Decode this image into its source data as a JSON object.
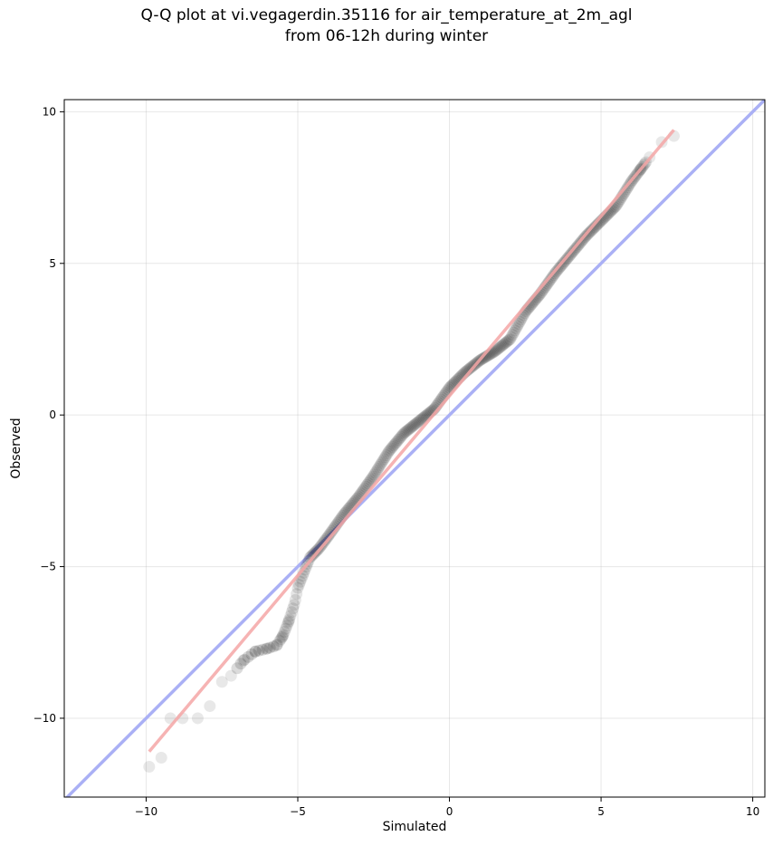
{
  "chart_data": {
    "type": "scatter",
    "title": "Q-Q plot at vi.vegagerdin.35116 for air_temperature_at_2m_agl",
    "subtitle": "from 06-12h during winter",
    "xlabel": "Simulated",
    "ylabel": "Observed",
    "xlim": [
      -12.7,
      10.4
    ],
    "ylim": [
      -12.6,
      10.4
    ],
    "xticks": [
      -10,
      -5,
      0,
      5,
      10
    ],
    "yticks": [
      -10,
      -5,
      0,
      5,
      10
    ],
    "tick_labels": {
      "x": [
        "−10",
        "−5",
        "0",
        "5",
        "10"
      ],
      "y": [
        "−10",
        "−5",
        "0",
        "5",
        "10"
      ]
    },
    "grid": true,
    "lines": {
      "identity": {
        "x": [
          -12.7,
          10.4
        ],
        "y": [
          -12.7,
          10.4
        ],
        "color": "#aab0f5"
      },
      "fit": {
        "x": [
          -9.9,
          7.4
        ],
        "y": [
          -11.1,
          9.4
        ],
        "color": "#f4a6a6"
      }
    },
    "point_color": "#000000",
    "quantile_curve": {
      "x": [
        -9.9,
        -9.5,
        -9.2,
        -8.8,
        -8.3,
        -7.9,
        -7.5,
        -7.2,
        -6.8,
        -6.4,
        -6.0,
        -5.7,
        -5.5,
        -5.3,
        -5.1,
        -5.0,
        -4.8,
        -4.6,
        -4.3,
        -4.0,
        -3.5,
        -3.0,
        -2.5,
        -2.0,
        -1.5,
        -1.0,
        -0.5,
        0.0,
        0.5,
        1.0,
        1.5,
        2.0,
        2.5,
        3.0,
        3.5,
        4.0,
        4.5,
        5.0,
        5.5,
        6.0,
        6.3,
        6.6,
        7.0,
        7.4
      ],
      "y": [
        -11.6,
        -11.3,
        -10.0,
        -10.0,
        -10.0,
        -9.6,
        -8.8,
        -8.6,
        -8.1,
        -7.8,
        -7.7,
        -7.6,
        -7.3,
        -6.8,
        -6.2,
        -5.7,
        -5.2,
        -4.7,
        -4.4,
        -4.0,
        -3.3,
        -2.7,
        -2.0,
        -1.2,
        -0.6,
        -0.2,
        0.2,
        0.9,
        1.4,
        1.8,
        2.1,
        2.5,
        3.4,
        4.0,
        4.7,
        5.3,
        5.9,
        6.4,
        6.9,
        7.7,
        8.1,
        8.5,
        9.0,
        9.2
      ]
    }
  }
}
